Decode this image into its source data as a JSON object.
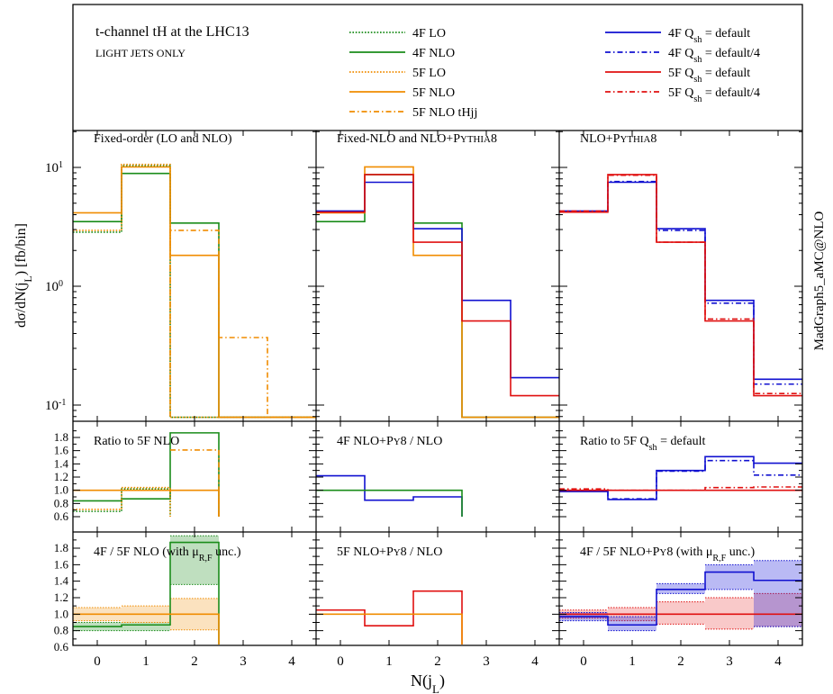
{
  "header": {
    "title": "t-channel tH   at the LHC13",
    "subtitle": "LIGHT JETS ONLY"
  },
  "legend_left": [
    {
      "label": "4F LO",
      "color": "#1a8c1a",
      "dash": "dot"
    },
    {
      "label": "4F NLO",
      "color": "#1a8c1a",
      "dash": "solid"
    },
    {
      "label": "5F LO",
      "color": "#f08c00",
      "dash": "dot"
    },
    {
      "label": "5F NLO",
      "color": "#f08c00",
      "dash": "solid"
    },
    {
      "label": "5F NLO tHjj",
      "color": "#f08c00",
      "dash": "dashdot"
    }
  ],
  "legend_right": [
    {
      "prefix": "4F Q",
      "sub": "sh",
      "suffix": " = default",
      "color": "#1010d0",
      "dash": "solid"
    },
    {
      "prefix": "4F Q",
      "sub": "sh",
      "suffix": " = default/4",
      "color": "#1010d0",
      "dash": "dashdot"
    },
    {
      "prefix": "5F Q",
      "sub": "sh",
      "suffix": " = default",
      "color": "#e01010",
      "dash": "solid"
    },
    {
      "prefix": "5F Q",
      "sub": "sh",
      "suffix": " = default/4",
      "color": "#e01010",
      "dash": "dashdot"
    }
  ],
  "side_label": "MadGraph5_aMC@NLO",
  "main_ylabel": {
    "pre": "dσ/dN(j",
    "sub": "L",
    "post": ")   [fb/bin]"
  },
  "xlabel": {
    "pre": "N(j",
    "sub": "L",
    "post": ")"
  },
  "main_yticks": [
    {
      "v": 0.1,
      "base": "10",
      "exp": "-1"
    },
    {
      "v": 1,
      "base": "10",
      "exp": "0"
    },
    {
      "v": 10,
      "base": "10",
      "exp": "1"
    }
  ],
  "ratio_yticks": [
    "0.6",
    "0.8",
    "1.0",
    "1.2",
    "1.4",
    "1.6",
    "1.8"
  ],
  "xticks": [
    "0",
    "1",
    "2",
    "3",
    "4"
  ],
  "panel_titles": {
    "main": [
      {
        "parts": [
          {
            "t": "Fixed-order (LO and NLO)"
          }
        ]
      },
      {
        "parts": [
          {
            "t": "Fixed-NLO   and   NLO+P"
          },
          {
            "t": "YTHIA",
            "sc": true
          },
          {
            "t": "8"
          }
        ]
      },
      {
        "parts": [
          {
            "t": "NLO+P"
          },
          {
            "t": "YTHIA",
            "sc": true
          },
          {
            "t": "8"
          }
        ]
      }
    ],
    "r1": [
      {
        "parts": [
          {
            "t": "Ratio to 5F NLO"
          }
        ]
      },
      {
        "parts": [
          {
            "t": "4F NLO+P"
          },
          {
            "t": "Y",
            "sc": true
          },
          {
            "t": "8 / NLO"
          }
        ]
      },
      {
        "parts": [
          {
            "t": "Ratio to 5F Q"
          },
          {
            "t": "sh",
            "sub": true
          },
          {
            "t": " = default"
          }
        ]
      }
    ],
    "r2": [
      {
        "parts": [
          {
            "t": "4F / 5F  NLO   (with μ"
          },
          {
            "t": "R,F",
            "sub": true
          },
          {
            "t": " unc.)"
          }
        ]
      },
      {
        "parts": [
          {
            "t": "5F NLO+P"
          },
          {
            "t": "Y",
            "sc": true
          },
          {
            "t": "8 / NLO"
          }
        ]
      },
      {
        "parts": [
          {
            "t": "4F / 5F  NLO+P"
          },
          {
            "t": "Y",
            "sc": true
          },
          {
            "t": "8   (with μ"
          },
          {
            "t": "R,F",
            "sub": true
          },
          {
            "t": " unc.)"
          }
        ]
      }
    ]
  },
  "colors": {
    "green": "#1a8c1a",
    "orange": "#f08c00",
    "blue": "#1010d0",
    "red": "#e01010"
  },
  "chart_data": {
    "type": "histogram",
    "bins": [
      "0",
      "1",
      "2",
      "3",
      "4"
    ],
    "main_log_ylim": [
      0.08,
      20
    ],
    "ratio_ylim": [
      0.6,
      1.95
    ],
    "main": [
      [
        {
          "name": "4F LO",
          "color": "green",
          "dash": "dot",
          "values": [
            2.85,
            10.3,
            0.079,
            0.079,
            0.079
          ]
        },
        {
          "name": "4F NLO",
          "color": "green",
          "dash": "solid",
          "values": [
            3.5,
            8.9,
            3.4,
            0.079,
            0.079
          ]
        },
        {
          "name": "5F LO",
          "color": "orange",
          "dash": "dot",
          "values": [
            2.95,
            10.6,
            0.079,
            0.079,
            0.079
          ]
        },
        {
          "name": "5F NLO tHjj",
          "color": "orange",
          "dash": "dashdot",
          "values": [
            null,
            null,
            2.95,
            0.37,
            0.079
          ]
        },
        {
          "name": "5F NLO",
          "color": "orange",
          "dash": "solid",
          "values": [
            4.15,
            10.1,
            1.82,
            0.079,
            0.079
          ]
        }
      ],
      [
        {
          "name": "4F NLO",
          "color": "green",
          "dash": "solid",
          "values": [
            3.5,
            8.7,
            3.4,
            0.079,
            0.079
          ]
        },
        {
          "name": "5F NLO",
          "color": "orange",
          "dash": "solid",
          "values": [
            4.15,
            10.1,
            1.82,
            0.079,
            0.079
          ]
        },
        {
          "name": "4F NLO+PY8",
          "color": "blue",
          "dash": "solid",
          "values": [
            4.3,
            7.5,
            3.05,
            0.76,
            0.17
          ]
        },
        {
          "name": "5F NLO+PY8",
          "color": "red",
          "dash": "solid",
          "values": [
            4.2,
            8.7,
            2.35,
            0.51,
            0.12
          ]
        }
      ],
      [
        {
          "name": "4F Q_sh = default",
          "color": "blue",
          "dash": "solid",
          "values": [
            4.3,
            7.5,
            3.05,
            0.76,
            0.165
          ]
        },
        {
          "name": "4F Q_sh = default/4",
          "color": "blue",
          "dash": "dashdot",
          "values": [
            4.25,
            7.6,
            2.95,
            0.72,
            0.15
          ]
        },
        {
          "name": "5F Q_sh = default",
          "color": "red",
          "dash": "solid",
          "values": [
            4.2,
            8.7,
            2.35,
            0.51,
            0.12
          ]
        },
        {
          "name": "5F Q_sh = default/4",
          "color": "red",
          "dash": "dashdot",
          "values": [
            4.3,
            8.6,
            2.35,
            0.53,
            0.125
          ]
        }
      ]
    ],
    "r1": [
      [
        {
          "name": "4F LO / 5F NLO",
          "color": "green",
          "dash": "dot",
          "values": [
            0.68,
            1.02,
            null,
            null,
            null
          ]
        },
        {
          "name": "4F NLO / 5F NLO",
          "color": "green",
          "dash": "solid",
          "values": [
            0.84,
            0.87,
            1.87,
            null,
            null
          ]
        },
        {
          "name": "5F LO / 5F NLO",
          "color": "orange",
          "dash": "dot",
          "values": [
            0.71,
            1.04,
            null,
            null,
            null
          ]
        },
        {
          "name": "5F NLO tHjj / 5F NLO",
          "color": "orange",
          "dash": "dashdot",
          "values": [
            null,
            null,
            1.61,
            null,
            null
          ]
        },
        {
          "name": "5F NLO / 5F NLO",
          "color": "orange",
          "dash": "solid",
          "values": [
            1.0,
            1.0,
            1.0,
            null,
            null
          ]
        }
      ],
      [
        {
          "name": "4F NLO+PY8 / NLO",
          "color": "blue",
          "dash": "solid",
          "values": [
            1.22,
            0.85,
            0.9,
            null,
            null
          ]
        },
        {
          "name": "4F NLO / NLO",
          "color": "green",
          "dash": "solid",
          "values": [
            1.0,
            1.0,
            1.0,
            null,
            null
          ]
        }
      ],
      [
        {
          "name": "4F default",
          "color": "blue",
          "dash": "solid",
          "values": [
            0.98,
            0.86,
            1.3,
            1.51,
            1.41
          ]
        },
        {
          "name": "4F default/4",
          "color": "blue",
          "dash": "dashdot",
          "values": [
            0.99,
            0.87,
            1.29,
            1.45,
            1.23
          ]
        },
        {
          "name": "5F default",
          "color": "red",
          "dash": "solid",
          "values": [
            1.0,
            1.0,
            1.0,
            1.0,
            1.0
          ]
        },
        {
          "name": "5F default/4",
          "color": "red",
          "dash": "dashdot",
          "values": [
            1.02,
            1.0,
            1.0,
            1.04,
            1.05
          ]
        }
      ]
    ],
    "r2": [
      [
        {
          "name": "4F/5F NLO",
          "color": "green",
          "dash": "solid",
          "values": [
            0.85,
            0.87,
            1.87,
            null,
            null
          ],
          "band": [
            [
              0.8,
              0.9
            ],
            [
              0.8,
              0.9
            ],
            [
              1.36,
              1.95
            ],
            null,
            null
          ]
        },
        {
          "name": "5F NLO",
          "color": "orange",
          "dash": "solid",
          "values": [
            1.0,
            1.0,
            1.0,
            null,
            null
          ],
          "band": [
            [
              0.92,
              1.08
            ],
            [
              0.9,
              1.1
            ],
            [
              0.81,
              1.19
            ],
            null,
            null
          ]
        }
      ],
      [
        {
          "name": "5F NLO+PY8 / NLO",
          "color": "red",
          "dash": "solid",
          "values": [
            1.05,
            0.86,
            1.28,
            null,
            null
          ]
        },
        {
          "name": "5F NLO",
          "color": "orange",
          "dash": "solid",
          "values": [
            1.0,
            1.0,
            1.0,
            null,
            null
          ]
        }
      ],
      [
        {
          "name": "5F NLO+PY8",
          "color": "red",
          "dash": "solid",
          "values": [
            1.0,
            1.0,
            1.0,
            1.0,
            1.0
          ],
          "band": [
            [
              0.95,
              1.05
            ],
            [
              0.92,
              1.08
            ],
            [
              0.88,
              1.15
            ],
            [
              0.82,
              1.2
            ],
            [
              0.85,
              1.25
            ]
          ]
        },
        {
          "name": "4F/5F NLO+PY8",
          "color": "blue",
          "dash": "solid",
          "values": [
            0.97,
            0.87,
            1.3,
            1.51,
            1.41
          ],
          "band": [
            [
              0.92,
              1.02
            ],
            [
              0.8,
              0.97
            ],
            [
              1.25,
              1.37
            ],
            [
              1.3,
              1.6
            ],
            [
              0.85,
              1.65
            ]
          ]
        }
      ]
    ]
  }
}
